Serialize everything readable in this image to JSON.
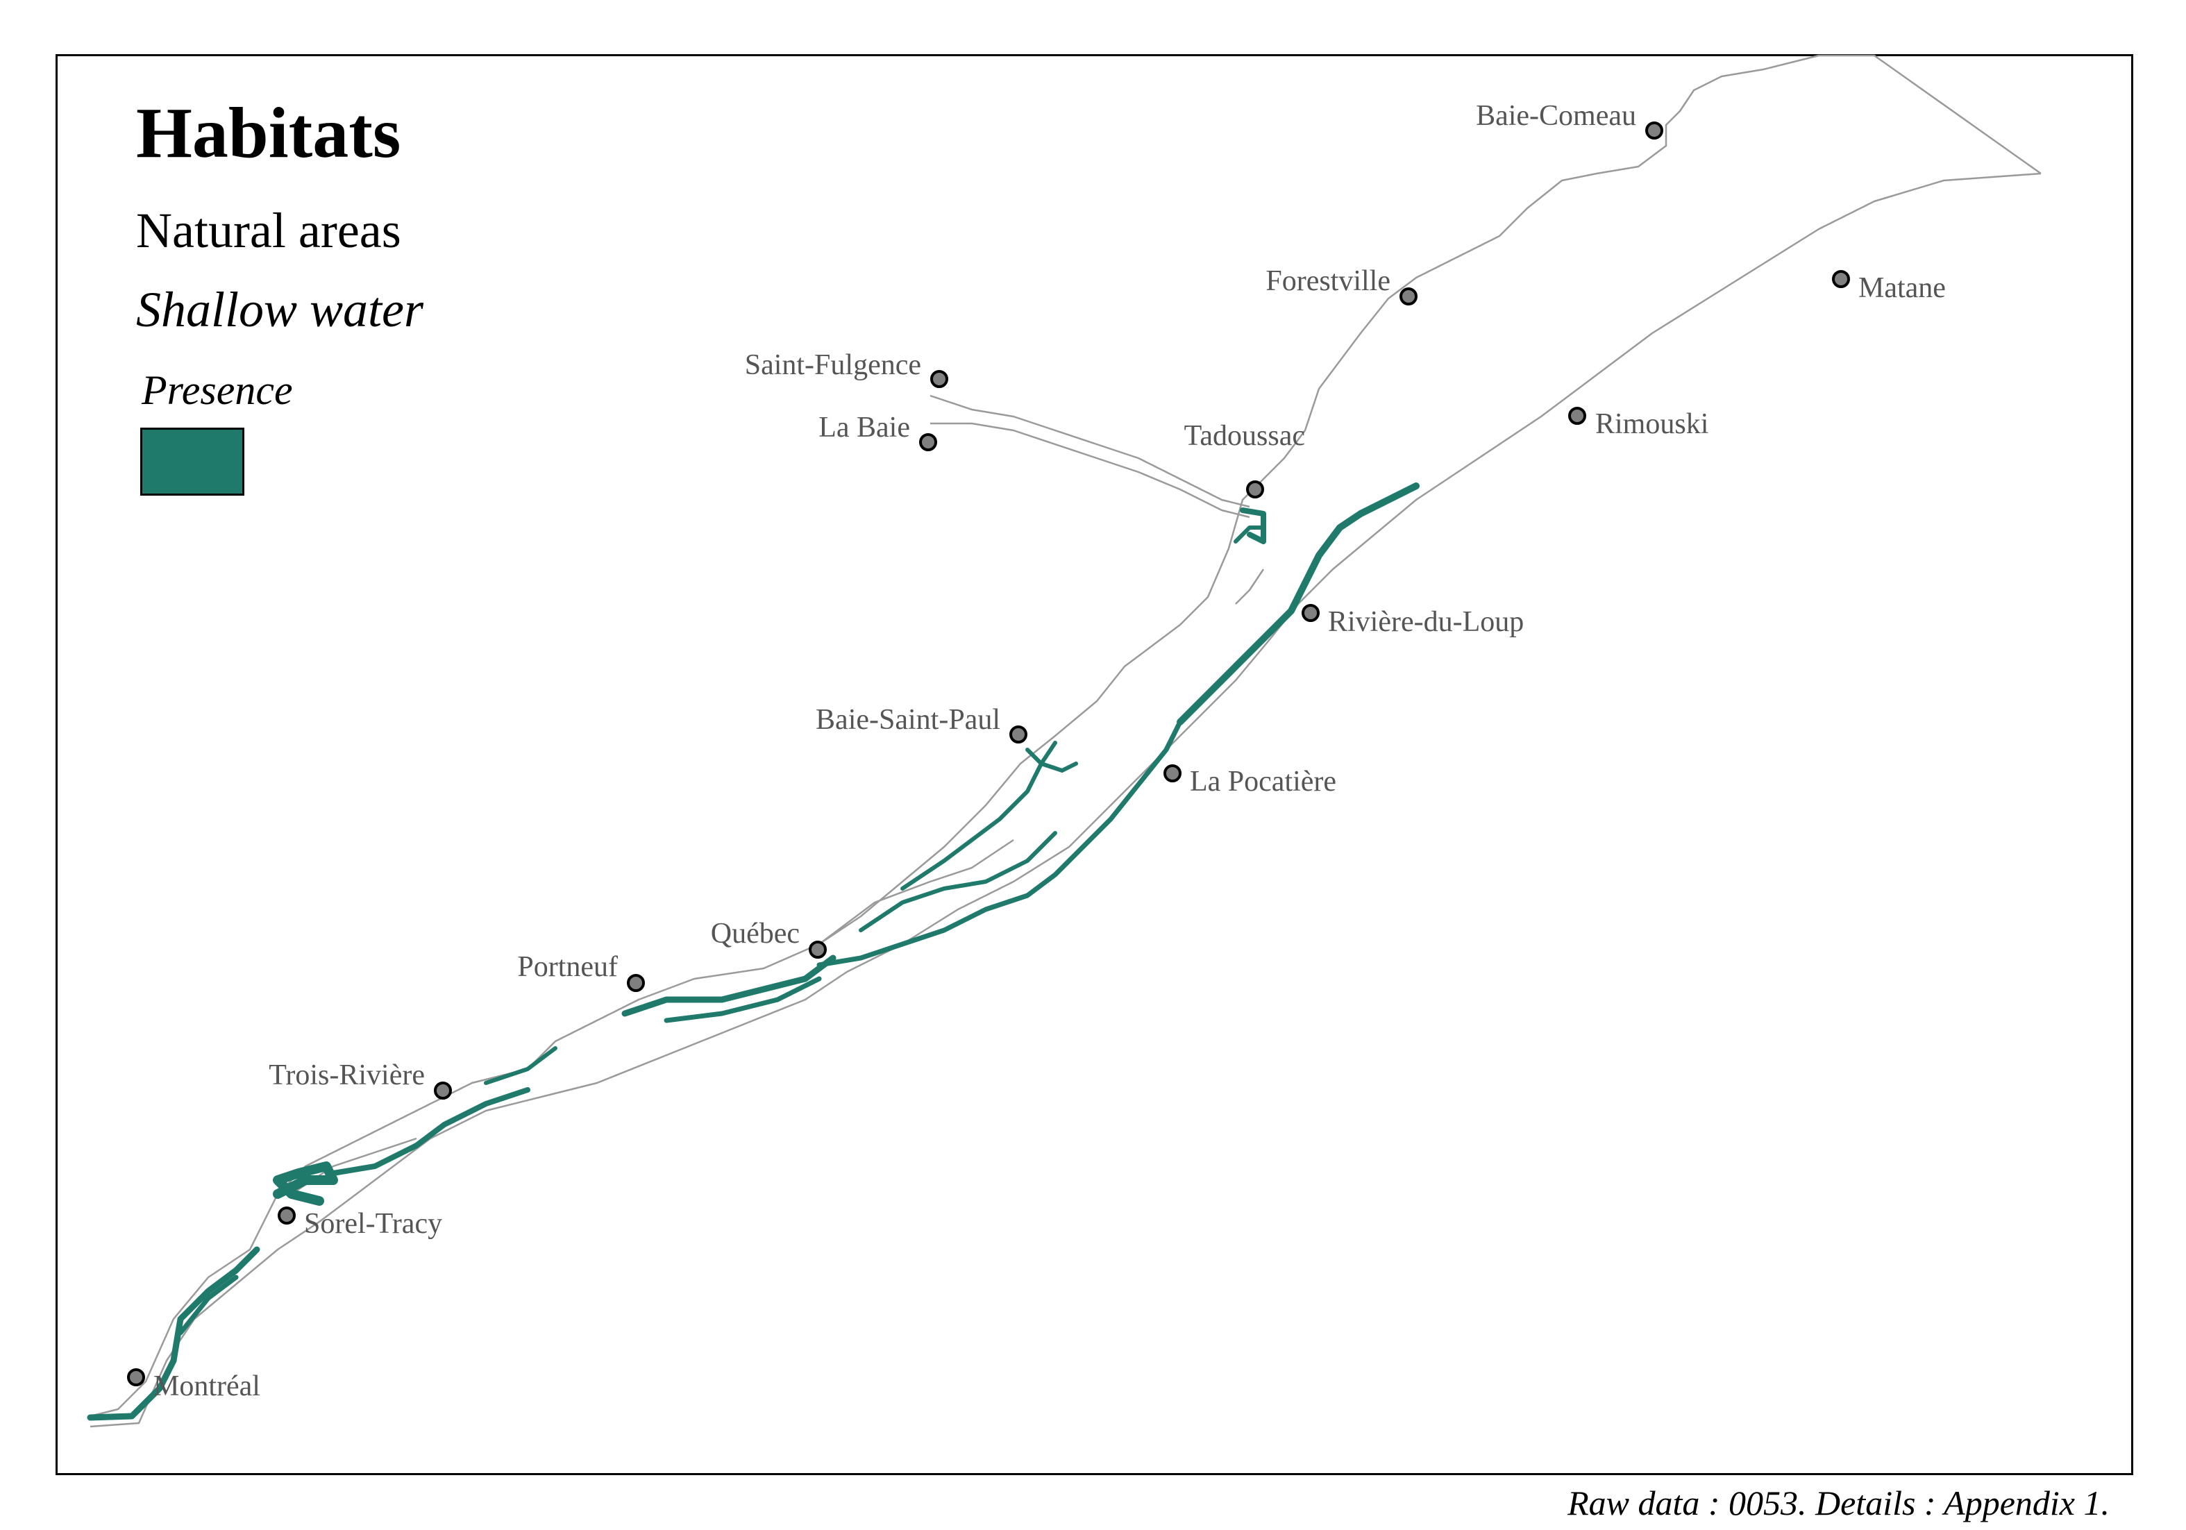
{
  "legend": {
    "title": "Habitats",
    "subtitle": "Natural areas",
    "category": "Shallow water",
    "key_title": "Presence",
    "key_color": "#1f7a6c"
  },
  "caption": "Raw data : 0053. Details : Appendix 1.",
  "colors": {
    "habitat": "#1f7a6c",
    "shoreline": "#9a9a9a",
    "city_fill": "#808080"
  },
  "cities": [
    {
      "name": "Baie-Comeau",
      "icon": "city-marker-icon"
    },
    {
      "name": "Forestville",
      "icon": "city-marker-icon"
    },
    {
      "name": "Matane",
      "icon": "city-marker-icon"
    },
    {
      "name": "Saint-Fulgence",
      "icon": "city-marker-icon"
    },
    {
      "name": "La Baie",
      "icon": "city-marker-icon"
    },
    {
      "name": "Tadoussac",
      "icon": "city-marker-icon"
    },
    {
      "name": "Rimouski",
      "icon": "city-marker-icon"
    },
    {
      "name": "Rivière-du-Loup",
      "icon": "city-marker-icon"
    },
    {
      "name": "Baie-Saint-Paul",
      "icon": "city-marker-icon"
    },
    {
      "name": "La Pocatière",
      "icon": "city-marker-icon"
    },
    {
      "name": "Québec",
      "icon": "city-marker-icon"
    },
    {
      "name": "Portneuf",
      "icon": "city-marker-icon"
    },
    {
      "name": "Trois-Rivière",
      "icon": "city-marker-icon"
    },
    {
      "name": "Sorel-Tracy",
      "icon": "city-marker-icon"
    },
    {
      "name": "Montréal",
      "icon": "city-marker-icon"
    }
  ]
}
